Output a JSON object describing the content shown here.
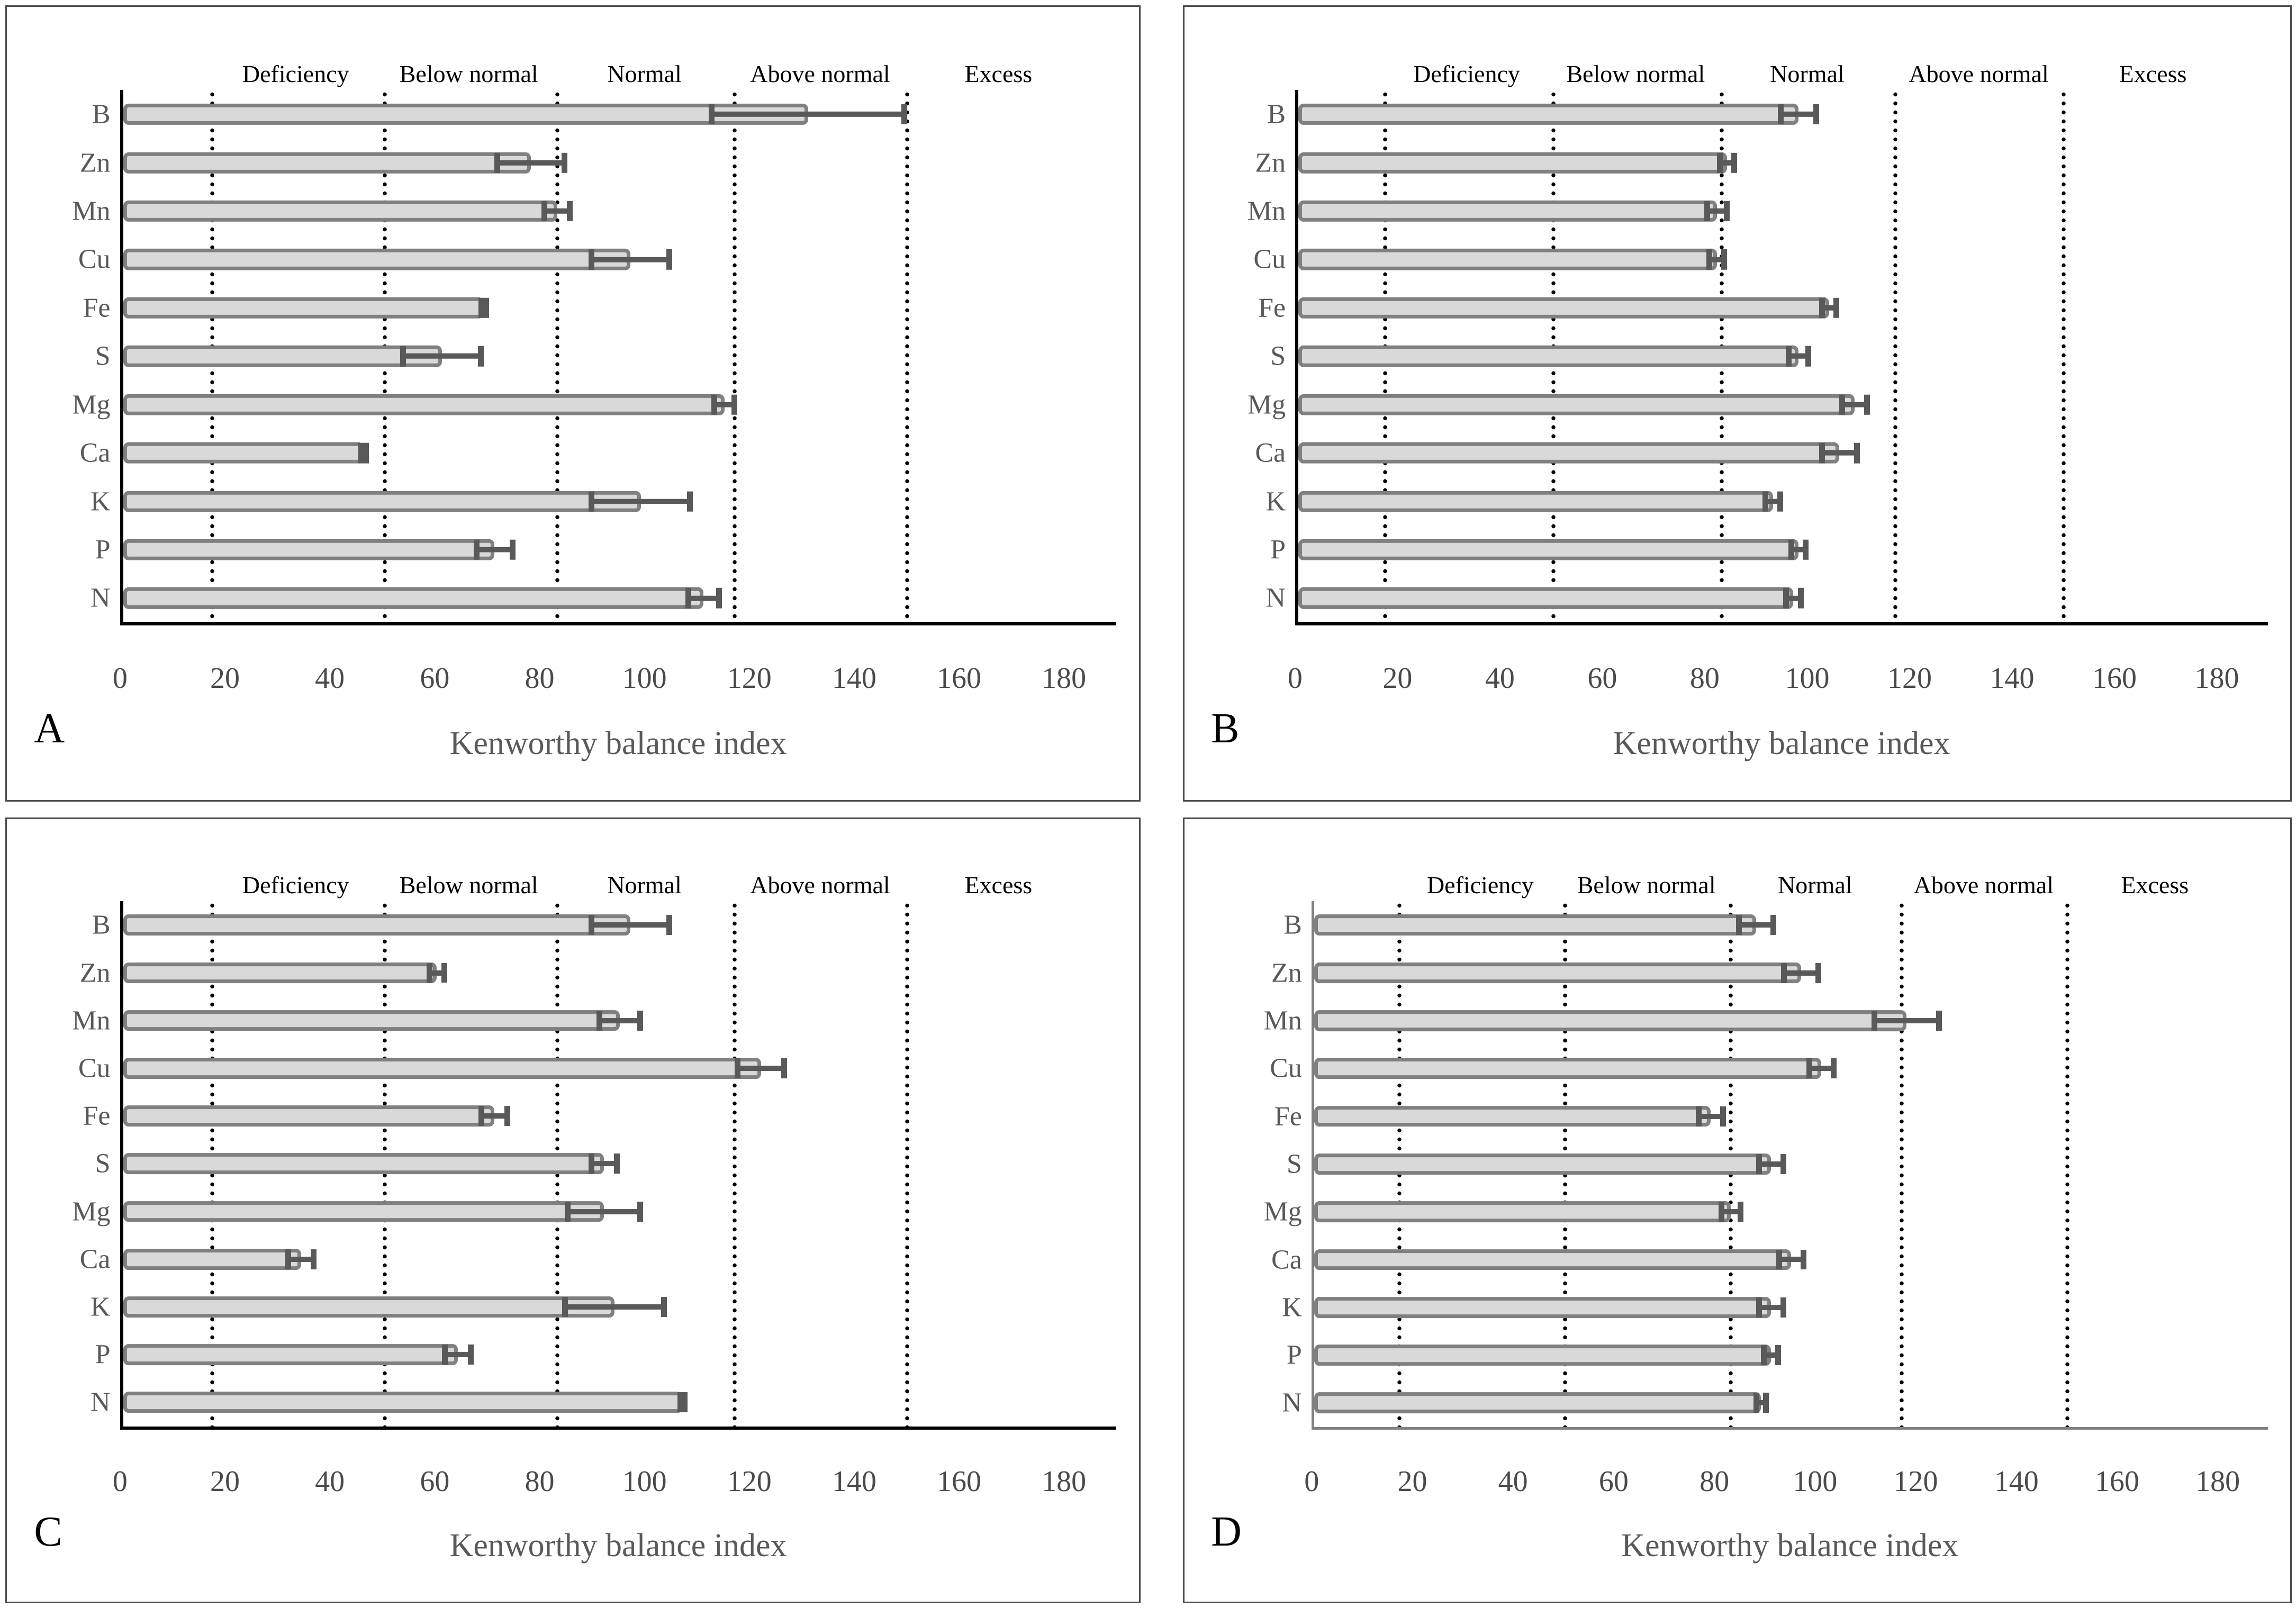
{
  "figure": {
    "description": "Four-panel horizontal bar chart figure of Kenworthy balance index for leaf nutrients",
    "background": "#ffffff",
    "panel_letters": [
      "A",
      "B",
      "C",
      "D"
    ]
  },
  "axis": {
    "xlabel": "Kenworthy balance index",
    "min": 0,
    "max": 180,
    "tick_step": 20,
    "ticks": [
      "0",
      "20",
      "40",
      "60",
      "80",
      "100",
      "120",
      "140",
      "160",
      "180"
    ],
    "plot_max": 190
  },
  "zones": {
    "labels": [
      "Deficiency",
      "Below normal",
      "Normal",
      "Above normal",
      "Excess"
    ],
    "boundaries": [
      17,
      50,
      83,
      117,
      150
    ],
    "label_centers": [
      33.5,
      66.5,
      100,
      133.5,
      167.5
    ]
  },
  "categories": [
    "B",
    "Zn",
    "Mn",
    "Cu",
    "Fe",
    "S",
    "Mg",
    "Ca",
    "K",
    "P",
    "N"
  ],
  "colors": {
    "bar_fill": "#d9d9d9",
    "bar_border": "#808080",
    "error_bar": "#595959",
    "axis_abc": "#000000",
    "axis_d": "#808080",
    "dotted_line": "#000000",
    "category_text": "#595959",
    "zone_text": "#000000"
  },
  "chart_data": [
    {
      "panel": "A",
      "type": "bar",
      "orientation": "horizontal",
      "axis_color": "#000000",
      "categories": [
        "B",
        "Zn",
        "Mn",
        "Cu",
        "Fe",
        "S",
        "Mg",
        "Ca",
        "K",
        "P",
        "N"
      ],
      "values": [
        131,
        78,
        83,
        97,
        69,
        61,
        115,
        46,
        99,
        71,
        111
      ],
      "errors": [
        19,
        7,
        3,
        8,
        1,
        8,
        2.5,
        1,
        10,
        4,
        3.5
      ]
    },
    {
      "panel": "B",
      "type": "bar",
      "orientation": "horizontal",
      "axis_color": "#000000",
      "categories": [
        "B",
        "Zn",
        "Mn",
        "Cu",
        "Fe",
        "S",
        "Mg",
        "Ca",
        "K",
        "P",
        "N"
      ],
      "values": [
        98,
        84,
        82,
        82,
        104,
        98,
        109,
        106,
        93,
        98,
        97
      ],
      "errors": [
        4,
        2,
        2.5,
        2,
        2,
        2.5,
        3,
        4,
        2,
        2,
        2
      ]
    },
    {
      "panel": "C",
      "type": "bar",
      "orientation": "horizontal",
      "axis_color": "#000000",
      "categories": [
        "B",
        "Zn",
        "Mn",
        "Cu",
        "Fe",
        "S",
        "Mg",
        "Ca",
        "K",
        "P",
        "N"
      ],
      "values": [
        97,
        60,
        95,
        122,
        71,
        92,
        92,
        34,
        94,
        64,
        107
      ],
      "errors": [
        8,
        2,
        4.5,
        5,
        3,
        3,
        7.5,
        3,
        10,
        3,
        1
      ]
    },
    {
      "panel": "D",
      "type": "bar",
      "orientation": "horizontal",
      "axis_color": "#808080",
      "categories": [
        "B",
        "Zn",
        "Mn",
        "Cu",
        "Fe",
        "S",
        "Mg",
        "Ca",
        "K",
        "P",
        "N"
      ],
      "values": [
        88,
        97,
        118,
        101,
        79,
        91,
        83,
        95,
        91,
        91,
        89
      ],
      "errors": [
        4,
        4,
        7,
        3,
        3,
        3,
        2.5,
        3,
        3,
        2,
        1.5
      ]
    }
  ]
}
